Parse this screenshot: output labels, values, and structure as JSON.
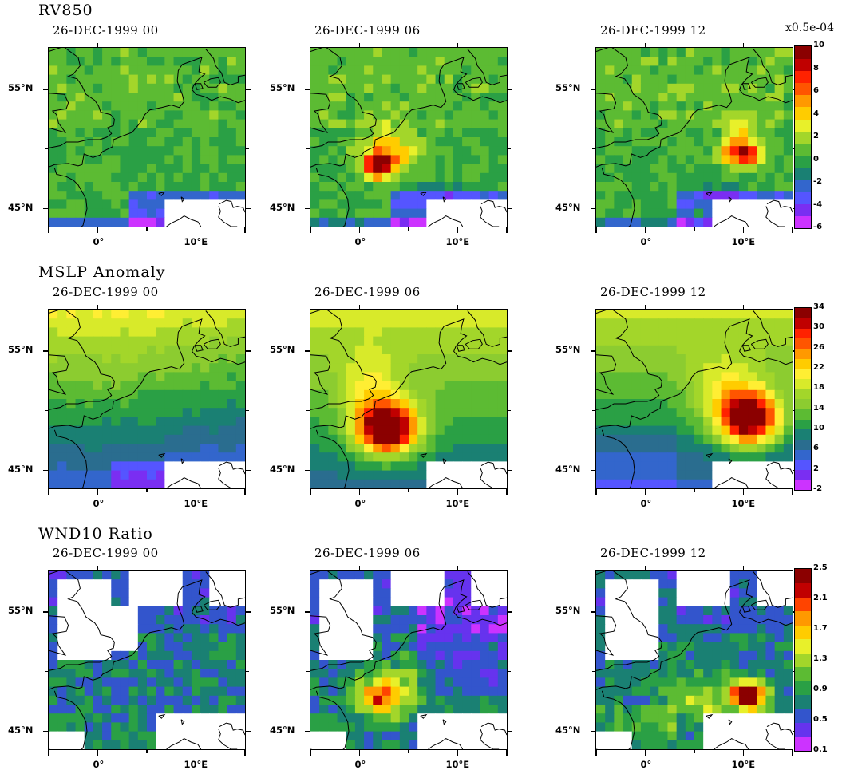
{
  "rows": [
    {
      "title": "RV850",
      "unit_label": "x0.5e-04",
      "palette": [
        "#cc33ff",
        "#7a2ef2",
        "#5555ff",
        "#3366cc",
        "#1a8073",
        "#2aa045",
        "#5cbb33",
        "#a3d62a",
        "#e8f02a",
        "#ffcc00",
        "#ff9900",
        "#ff5500",
        "#ff2200",
        "#c00000",
        "#8b0000"
      ],
      "levels": [
        -6,
        -5,
        -4,
        -3,
        -2,
        -1,
        0,
        1,
        2,
        3,
        4,
        5,
        6,
        7,
        8,
        9,
        10
      ],
      "tick_labels": [
        "10",
        "8",
        "6",
        "4",
        "2",
        "0",
        "-2",
        "-4",
        "-6"
      ],
      "type": "rv"
    },
    {
      "title": "MSLP Anomaly",
      "unit_label": "",
      "palette": [
        "#cc33ff",
        "#7a2ef2",
        "#5555ff",
        "#3366cc",
        "#2a6d8f",
        "#1a8073",
        "#2aa045",
        "#5cbb33",
        "#8ccc30",
        "#a3d62a",
        "#d8ea2a",
        "#ffee33",
        "#ffcc00",
        "#ff9900",
        "#ff5500",
        "#ff2200",
        "#c00000",
        "#8b0000"
      ],
      "levels": [
        -2,
        0,
        2,
        4,
        6,
        8,
        10,
        12,
        14,
        16,
        18,
        20,
        22,
        24,
        26,
        28,
        30,
        32,
        34
      ],
      "tick_labels": [
        "34",
        "30",
        "26",
        "22",
        "18",
        "14",
        "10",
        "6",
        "2",
        "-2"
      ],
      "type": "mslp"
    },
    {
      "title": "WND10 Ratio",
      "unit_label": "",
      "palette": [
        "#cc33ff",
        "#6633ee",
        "#3355cc",
        "#1a8073",
        "#2aa045",
        "#5cbb33",
        "#a3d62a",
        "#e8f02a",
        "#ffcc00",
        "#ff9900",
        "#ff4400",
        "#c00000",
        "#8b0000"
      ],
      "levels": [
        0.1,
        0.3,
        0.5,
        0.7,
        0.9,
        1.1,
        1.3,
        1.5,
        1.7,
        1.9,
        2.1,
        2.3,
        2.5
      ],
      "tick_labels": [
        "2.5",
        "2.1",
        "1.7",
        "1.3",
        "0.9",
        "0.5",
        "0.1"
      ],
      "type": "wnd"
    }
  ],
  "dates": [
    "26-DEC-1999 00",
    "26-DEC-1999 06",
    "26-DEC-1999 12"
  ],
  "lat_labels": [
    "55°N",
    "45°N"
  ],
  "lon_labels": [
    "0°",
    "10°E"
  ],
  "map_extent": {
    "lon_min": -5,
    "lon_max": 15,
    "lat_min": 43.5,
    "lat_max": 58.5
  }
}
